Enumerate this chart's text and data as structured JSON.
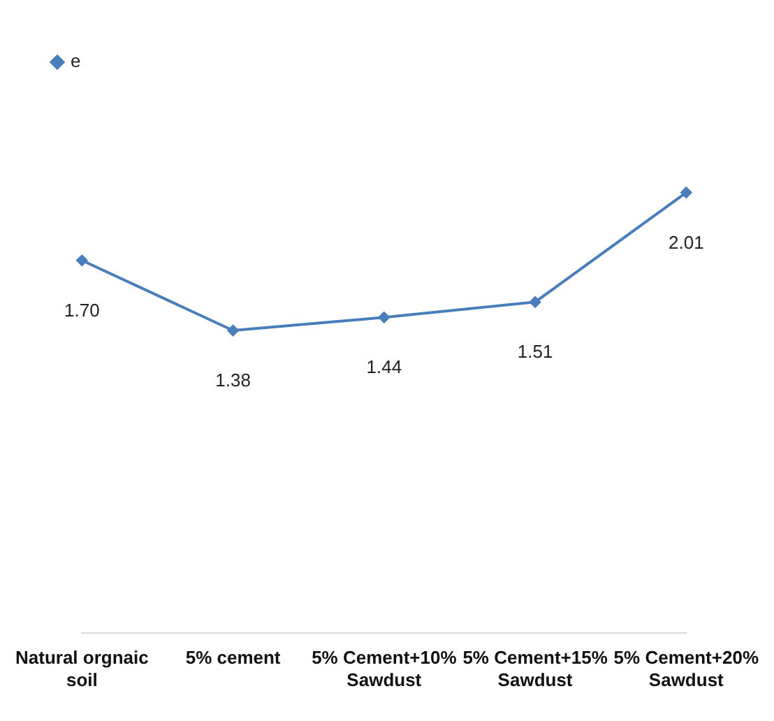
{
  "chart_data": {
    "type": "line",
    "categories": [
      "Natural orgnaic soil",
      "5% cement",
      "5% Cement+10% Sawdust",
      "5% Cement+15% Sawdust",
      "5% Cement+20% Sawdust"
    ],
    "series": [
      {
        "name": "e",
        "color": "#4a7ebb",
        "values": [
          1.7,
          1.38,
          1.44,
          1.51,
          2.01
        ],
        "value_labels": [
          "1.70",
          "1.38",
          "1.44",
          "1.51",
          "2.01"
        ]
      }
    ],
    "tick_labels": "x",
    "legend": "top left",
    "marker": "diamond",
    "grid": false
  }
}
